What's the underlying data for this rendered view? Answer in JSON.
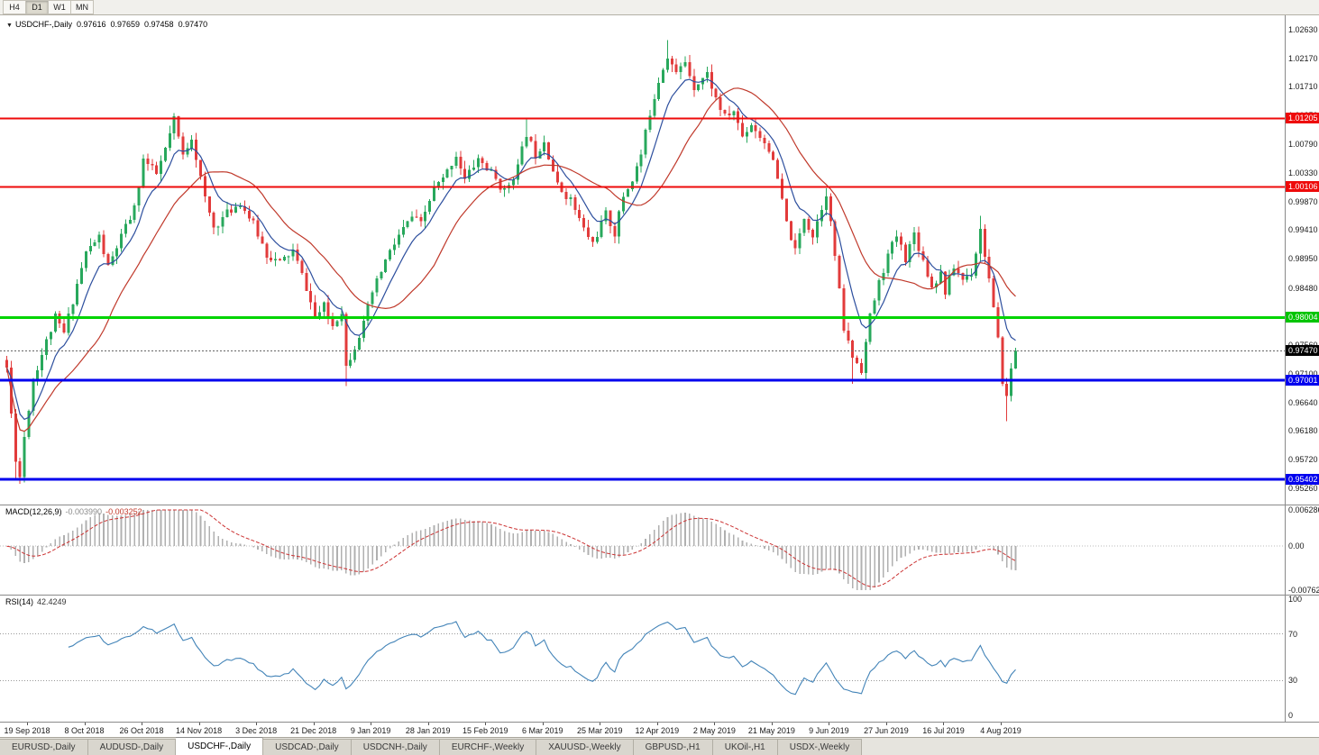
{
  "toolbar": {
    "timeframes": [
      {
        "label": "H4",
        "active": false
      },
      {
        "label": "D1",
        "active": true
      },
      {
        "label": "W1",
        "active": false
      },
      {
        "label": "MN",
        "active": false
      }
    ]
  },
  "chart_header": {
    "expander": "▼",
    "symbol": "USDCHF-,Daily",
    "open": "0.97616",
    "high": "0.97659",
    "low": "0.97458",
    "close": "0.97470"
  },
  "price_scale": {
    "ticks": [
      "1.02630",
      "1.02170",
      "1.01710",
      "1.01250",
      "1.00790",
      "1.00330",
      "0.99870",
      "0.99410",
      "0.98950",
      "0.98480",
      "0.98020",
      "0.97560",
      "0.97100",
      "0.96640",
      "0.96180",
      "0.95720",
      "0.95260"
    ],
    "badges": [
      {
        "label": "1.01205",
        "price": 1.01205,
        "bg": "#ee0a0a"
      },
      {
        "label": "1.00106",
        "price": 1.00106,
        "bg": "#ee0a0a"
      },
      {
        "label": "0.98004",
        "price": 0.98004,
        "bg": "#00c400"
      },
      {
        "label": "0.97470",
        "price": 0.9747,
        "bg": "#000000"
      },
      {
        "label": "0.97001",
        "price": 0.97001,
        "bg": "#0000ee"
      },
      {
        "label": "0.95402",
        "price": 0.95402,
        "bg": "#0000ee"
      }
    ]
  },
  "hlines": [
    {
      "name": "resistance-1.01205",
      "price": 1.01205,
      "color": "#ee0a0a",
      "width": 2
    },
    {
      "name": "resistance-1.00106",
      "price": 1.00106,
      "color": "#ee0a0a",
      "width": 2
    },
    {
      "name": "support-0.98004",
      "price": 0.98004,
      "color": "#00d400",
      "width": 3
    },
    {
      "name": "support-0.97001",
      "price": 0.97001,
      "color": "#0000ee",
      "width": 3
    },
    {
      "name": "support-0.95402",
      "price": 0.95402,
      "color": "#0000ee",
      "width": 3
    }
  ],
  "current_price": {
    "value": 0.9747,
    "label": "0.97470"
  },
  "chart_data": {
    "type": "candlestick",
    "symbol": "USDCHF",
    "timeframe": "Daily",
    "visible_range": {
      "price_min": 0.95,
      "price_max": 1.0286
    },
    "candles_count": 230,
    "colors": {
      "bull": "#28a85c",
      "bear": "#e23b3b"
    },
    "moving_averages": [
      {
        "type": "EMA",
        "period": 8,
        "color": "#2d4f9e"
      },
      {
        "type": "SMA",
        "period": 21,
        "color": "#c0392b"
      }
    ],
    "price_path": [
      [
        0,
        0.972
      ],
      [
        1,
        0.9645
      ],
      [
        2,
        0.9575
      ],
      [
        3,
        0.9545
      ],
      [
        4,
        0.961
      ],
      [
        6,
        0.97
      ],
      [
        9,
        0.9762
      ],
      [
        11,
        0.98
      ],
      [
        13,
        0.9775
      ],
      [
        16,
        0.9855
      ],
      [
        18,
        0.9905
      ],
      [
        21,
        0.993
      ],
      [
        23,
        0.988
      ],
      [
        26,
        0.993
      ],
      [
        29,
        0.9975
      ],
      [
        31,
        1.0055
      ],
      [
        34,
        1.003
      ],
      [
        36,
        1.007
      ],
      [
        38,
        1.0118
      ],
      [
        40,
        1.006
      ],
      [
        42,
        1.0092
      ],
      [
        45,
        0.999
      ],
      [
        47,
        0.9945
      ],
      [
        50,
        0.9968
      ],
      [
        53,
        0.9985
      ],
      [
        56,
        0.995
      ],
      [
        59,
        0.9902
      ],
      [
        62,
        0.9888
      ],
      [
        65,
        0.9908
      ],
      [
        68,
        0.9848
      ],
      [
        70,
        0.98
      ],
      [
        72,
        0.9818
      ],
      [
        74,
        0.9788
      ],
      [
        76,
        0.9812
      ],
      [
        77,
        0.9722
      ],
      [
        79,
        0.9755
      ],
      [
        81,
        0.979
      ],
      [
        83,
        0.984
      ],
      [
        86,
        0.9892
      ],
      [
        89,
        0.9932
      ],
      [
        92,
        0.9962
      ],
      [
        94,
        0.995
      ],
      [
        97,
        1.0008
      ],
      [
        99,
        1.0022
      ],
      [
        102,
        1.0062
      ],
      [
        104,
        1.0022
      ],
      [
        107,
        1.0056
      ],
      [
        110,
        1.0032
      ],
      [
        113,
        1.0002
      ],
      [
        116,
        1.0042
      ],
      [
        118,
        1.0096
      ],
      [
        120,
        1.0062
      ],
      [
        122,
        1.0086
      ],
      [
        125,
        1.0012
      ],
      [
        128,
        0.999
      ],
      [
        131,
        0.9942
      ],
      [
        133,
        0.992
      ],
      [
        136,
        0.9966
      ],
      [
        138,
        0.9936
      ],
      [
        140,
        0.9996
      ],
      [
        142,
        1.0022
      ],
      [
        144,
        1.0062
      ],
      [
        146,
        1.013
      ],
      [
        148,
        1.0182
      ],
      [
        150,
        1.0222
      ],
      [
        152,
        1.0192
      ],
      [
        154,
        1.0212
      ],
      [
        156,
        1.0172
      ],
      [
        159,
        1.0192
      ],
      [
        161,
        1.0152
      ],
      [
        163,
        1.0122
      ],
      [
        165,
        1.0132
      ],
      [
        167,
        1.0092
      ],
      [
        169,
        1.0112
      ],
      [
        171,
        1.0092
      ],
      [
        173,
        1.0072
      ],
      [
        175,
        1.0022
      ],
      [
        177,
        0.9952
      ],
      [
        179,
        0.9906
      ],
      [
        181,
        0.9962
      ],
      [
        183,
        0.9932
      ],
      [
        186,
        1.0002
      ],
      [
        188,
        0.99
      ],
      [
        190,
        0.9782
      ],
      [
        192,
        0.9738
      ],
      [
        194,
        0.9718
      ],
      [
        196,
        0.9802
      ],
      [
        198,
        0.9856
      ],
      [
        200,
        0.99
      ],
      [
        202,
        0.9932
      ],
      [
        204,
        0.9896
      ],
      [
        206,
        0.9936
      ],
      [
        208,
        0.9892
      ],
      [
        210,
        0.985
      ],
      [
        212,
        0.9872
      ],
      [
        213,
        0.9842
      ],
      [
        215,
        0.9882
      ],
      [
        217,
        0.9862
      ],
      [
        219,
        0.9872
      ],
      [
        221,
        0.9942
      ],
      [
        223,
        0.9862
      ],
      [
        225,
        0.9762
      ],
      [
        226,
        0.97
      ],
      [
        227,
        0.9672
      ],
      [
        228,
        0.9718
      ],
      [
        229,
        0.9747
      ]
    ],
    "wick_overrides": [
      [
        2,
        "low",
        0.9538
      ],
      [
        38,
        "high",
        1.0128
      ],
      [
        77,
        "low",
        0.969
      ],
      [
        118,
        "high",
        1.0122
      ],
      [
        150,
        "high",
        1.0246
      ],
      [
        186,
        "high",
        1.0008
      ],
      [
        192,
        "low",
        0.9694
      ],
      [
        221,
        "high",
        0.9964
      ],
      [
        227,
        "low",
        0.9634
      ]
    ]
  },
  "macd_panel": {
    "label": "MACD(12,26,9)",
    "value_main": "-0.003990",
    "value_signal": "-0.003252",
    "scale": {
      "max": 0.006286,
      "min": -0.00762,
      "labels": [
        {
          "label": "0.006286",
          "v": 0.006286
        },
        {
          "label": "0.00",
          "v": 0
        },
        {
          "label": "-0.00762",
          "v": -0.00762
        }
      ]
    },
    "colors": {
      "histogram": "#b0b0b0",
      "signal": "#cc3333"
    }
  },
  "rsi_panel": {
    "label": "RSI(14)",
    "value": "42.4249",
    "levels": [
      70,
      30
    ],
    "scale_labels": [
      {
        "label": "100",
        "v": 100
      },
      {
        "label": "70",
        "v": 70
      },
      {
        "label": "30",
        "v": 30
      },
      {
        "label": "0",
        "v": 0
      }
    ],
    "color": "#4384b8"
  },
  "time_axis": {
    "labels": [
      "19 Sep 2018",
      "8 Oct 2018",
      "26 Oct 2018",
      "14 Nov 2018",
      "3 Dec 2018",
      "21 Dec 2018",
      "9 Jan 2019",
      "28 Jan 2019",
      "15 Feb 2019",
      "6 Mar 2019",
      "25 Mar 2019",
      "12 Apr 2019",
      "2 May 2019",
      "21 May 2019",
      "9 Jun 2019",
      "27 Jun 2019",
      "16 Jul 2019",
      "4 Aug 2019"
    ]
  },
  "tab_bar": {
    "tabs": [
      {
        "label": "EURUSD-,Daily",
        "active": false
      },
      {
        "label": "AUDUSD-,Daily",
        "active": false
      },
      {
        "label": "USDCHF-,Daily",
        "active": true
      },
      {
        "label": "USDCAD-,Daily",
        "active": false
      },
      {
        "label": "USDCNH-,Daily",
        "active": false
      },
      {
        "label": "EURCHF-,Weekly",
        "active": false
      },
      {
        "label": "XAUUSD-,Weekly",
        "active": false
      },
      {
        "label": "GBPUSD-,H1",
        "active": false
      },
      {
        "label": "UKOil-,H1",
        "active": false
      },
      {
        "label": "USDX-,Weekly",
        "active": false
      }
    ]
  }
}
